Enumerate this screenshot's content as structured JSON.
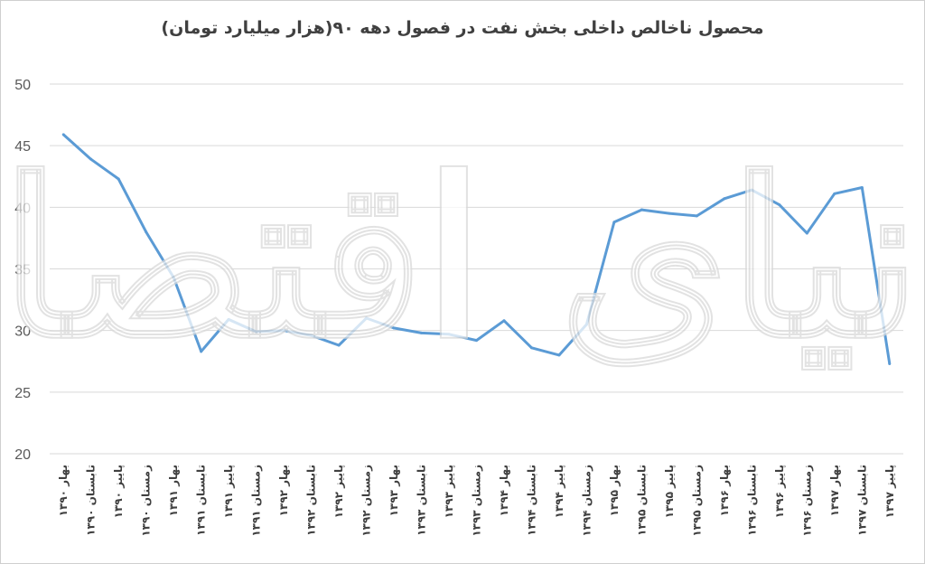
{
  "chart_data": {
    "type": "line",
    "title": "محصول ناخالص داخلی بخش نفت در فصول دهه ۹۰(هزار میلیارد تومان)",
    "xlabel": "",
    "ylabel": "",
    "ylim": [
      20,
      50
    ],
    "yticks": [
      "20",
      "25",
      "30",
      "35",
      "40",
      "45",
      "50"
    ],
    "grid": "horizontal",
    "legend": "none",
    "categories": [
      "بهار ۱۳۹۰",
      "تابستان ۱۳۹۰",
      "پاییز ۱۳۹۰",
      "زمستان ۱۳۹۰",
      "بهار ۱۳۹۱",
      "تابستان ۱۳۹۱",
      "پاییز ۱۳۹۱",
      "زمستان ۱۳۹۱",
      "بهار ۱۳۹۲",
      "تابستان ۱۳۹۲",
      "پاییز ۱۳۹۲",
      "زمستان ۱۳۹۲",
      "بهار ۱۳۹۳",
      "تابستان ۱۳۹۳",
      "پاییز ۱۳۹۳",
      "زمستان ۱۳۹۳",
      "بهار ۱۳۹۴",
      "تابستان ۱۳۹۴",
      "پاییز ۱۳۹۴",
      "زمستان ۱۳۹۴",
      "بهار ۱۳۹۵",
      "تابستان ۱۳۹۵",
      "پاییز ۱۳۹۵",
      "زمستان ۱۳۹۵",
      "بهار ۱۳۹۶",
      "تابستان ۱۳۹۶",
      "پاییز ۱۳۹۶",
      "زمستان ۱۳۹۶",
      "بهار ۱۳۹۷",
      "تابستان ۱۳۹۷",
      "پاییز ۱۳۹۷"
    ],
    "series": [
      {
        "values": [
          45.9,
          43.9,
          42.3,
          38.0,
          34.3,
          28.3,
          30.9,
          29.9,
          30.0,
          29.6,
          28.8,
          31.0,
          30.2,
          29.8,
          29.7,
          29.2,
          30.8,
          28.6,
          28.0,
          30.5,
          38.8,
          39.8,
          39.5,
          39.3,
          40.7,
          41.4,
          40.2,
          37.9,
          41.1,
          41.6,
          27.3
        ]
      }
    ],
    "line_color": "#5b9bd5"
  },
  "watermark": "دنیای اقتصاد"
}
